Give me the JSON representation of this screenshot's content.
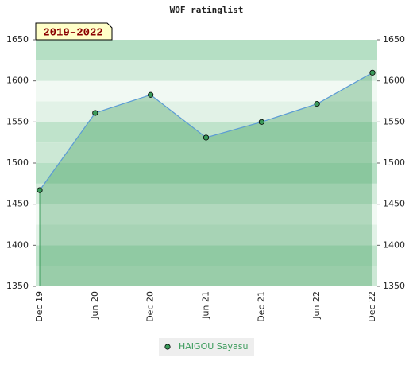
{
  "chart_data": {
    "type": "area-line",
    "title": "WOF ratinglist",
    "annotation": "2019–2022",
    "categories": [
      "Dec 19",
      "Jun 20",
      "Dec 20",
      "Jun 21",
      "Dec 21",
      "Jun 22",
      "Dec 22"
    ],
    "series": [
      {
        "name": "HAIGOU Sayasu",
        "color": "#3a9a5a",
        "line_color": "#5b9bd5",
        "values": [
          1467,
          1561,
          1583,
          1531,
          1550,
          1572,
          1610
        ]
      }
    ],
    "ylim": [
      1350,
      1650
    ],
    "yticks": [
      1350,
      1400,
      1450,
      1500,
      1550,
      1600,
      1650
    ],
    "right_axis": true,
    "legend": "bottom"
  }
}
